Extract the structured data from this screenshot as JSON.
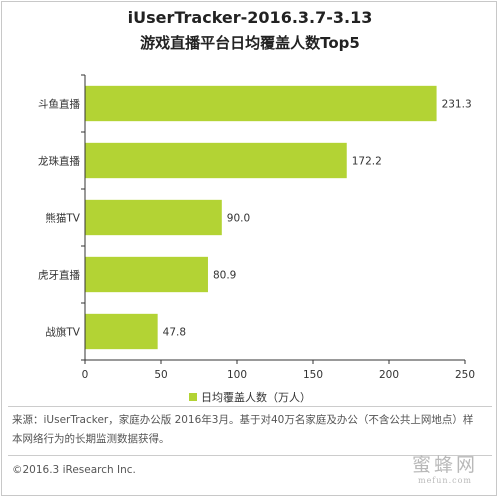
{
  "colors": {
    "bar": "#b3d334",
    "axis": "#333333"
  },
  "chart_data": {
    "type": "bar",
    "orientation": "horizontal",
    "title": "iUserTracker-2016.3.7-3.13",
    "subtitle": "游戏直播平台日均覆盖人数Top5",
    "categories": [
      "斗鱼直播",
      "龙珠直播",
      "熊猫TV",
      "虎牙直播",
      "战旗TV"
    ],
    "series": [
      {
        "name": "日均覆盖人数（万人）",
        "values": [
          231.3,
          172.2,
          90.0,
          80.9,
          47.8
        ],
        "labels": [
          "231.3",
          "172.2",
          "90.0",
          "80.9",
          "47.8"
        ]
      }
    ],
    "xlim": [
      0,
      250
    ],
    "xticks": [
      0,
      50,
      100,
      150,
      200,
      250
    ],
    "grid": false,
    "legend_position": "bottom"
  },
  "source": "来源：iUserTracker，家庭办公版 2016年3月。基于对40万名家庭及办公（不含公共上网地点）样本网络行为的长期监测数据获得。",
  "copyright": "©2016.3 iResearch Inc.",
  "watermark": {
    "main": "蜜蜂网",
    "sub": "mefun.com"
  }
}
